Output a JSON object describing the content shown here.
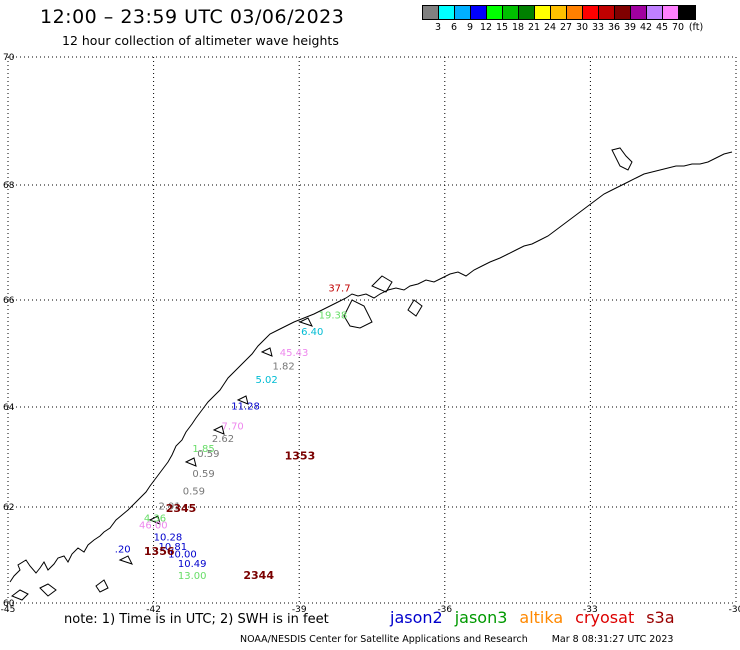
{
  "header": {
    "title": "12:00 – 23:59 UTC 03/06/2023",
    "subtitle": "12 hour collection of altimeter wave heights"
  },
  "colorbar": {
    "colors": [
      "#808080",
      "#00ffff",
      "#00b0ff",
      "#0000ff",
      "#00ff00",
      "#00c000",
      "#008000",
      "#ffff00",
      "#ffc000",
      "#ff8000",
      "#ff0000",
      "#c00000",
      "#800000",
      "#a000a0",
      "#c080ff",
      "#ff80ff",
      "#000000"
    ],
    "labels": [
      "3",
      "6",
      "9",
      "12",
      "15",
      "18",
      "21",
      "24",
      "27",
      "30",
      "33",
      "36",
      "39",
      "42",
      "45",
      "70",
      "(ft)"
    ]
  },
  "chart_data": {
    "type": "scatter",
    "title": "12 hour collection of altimeter wave heights",
    "xlim": [
      -45,
      -30
    ],
    "ylim": [
      60,
      70
    ],
    "x_ticks": [
      "-45",
      "-42",
      "-39",
      "-36",
      "-33",
      "-30"
    ],
    "y_ticks": [
      "70",
      "68",
      "66",
      "64",
      "62",
      "60"
    ],
    "grid": true,
    "points": [
      {
        "lon": -38.4,
        "lat": 66.15,
        "label": "37.7",
        "color": "#c00000"
      },
      {
        "lon": -38.6,
        "lat": 65.65,
        "label": "19.38",
        "color": "#66dd66"
      },
      {
        "lon": -38.96,
        "lat": 65.35,
        "label": "6.40",
        "color": "#00bcd4"
      },
      {
        "lon": -39.4,
        "lat": 64.95,
        "label": "45.43",
        "color": "#ee88ee"
      },
      {
        "lon": -39.55,
        "lat": 64.7,
        "label": "1.82",
        "color": "#777777"
      },
      {
        "lon": -39.9,
        "lat": 64.45,
        "label": "5.02",
        "color": "#00bcd4"
      },
      {
        "lon": -40.4,
        "lat": 63.95,
        "label": "11.28",
        "color": "#0000cc"
      },
      {
        "lon": -40.6,
        "lat": 63.55,
        "label": "7.70",
        "color": "#ee88ee"
      },
      {
        "lon": -40.8,
        "lat": 63.3,
        "label": "2.62",
        "color": "#777777"
      },
      {
        "lon": -41.2,
        "lat": 63.1,
        "label": "1.85",
        "color": "#66dd66"
      },
      {
        "lon": -41.1,
        "lat": 63.0,
        "label": "0.59",
        "color": "#777777"
      },
      {
        "lon": -41.2,
        "lat": 62.6,
        "label": "0.59",
        "color": "#777777"
      },
      {
        "lon": -41.4,
        "lat": 62.25,
        "label": "0.59",
        "color": "#777777"
      },
      {
        "lon": -41.9,
        "lat": 61.95,
        "label": "2.91",
        "color": "#777777"
      },
      {
        "lon": -42.2,
        "lat": 61.7,
        "label": "4.36",
        "color": "#66dd66"
      },
      {
        "lon": -42.3,
        "lat": 61.55,
        "label": "46.00",
        "color": "#ee88ee"
      },
      {
        "lon": -42.0,
        "lat": 61.3,
        "label": "10.28",
        "color": "#0000cc"
      },
      {
        "lon": -41.9,
        "lat": 61.1,
        "label": "10.81",
        "color": "#0000cc"
      },
      {
        "lon": -42.8,
        "lat": 61.05,
        "label": ".20",
        "color": "#0000cc"
      },
      {
        "lon": -41.7,
        "lat": 60.95,
        "label": "10.00",
        "color": "#0000cc"
      },
      {
        "lon": -41.5,
        "lat": 60.75,
        "label": "10.49",
        "color": "#0000cc"
      },
      {
        "lon": -41.5,
        "lat": 60.5,
        "label": "13.00",
        "color": "#66dd66"
      }
    ],
    "pass_times": [
      {
        "lon": -39.3,
        "lat": 62.95,
        "label": "1353"
      },
      {
        "lon": -41.75,
        "lat": 61.9,
        "label": "2345"
      },
      {
        "lon": -42.2,
        "lat": 61.0,
        "label": "1356"
      },
      {
        "lon": -40.15,
        "lat": 60.5,
        "label": "2344"
      }
    ]
  },
  "note": "note:  1) Time is in UTC;  2) SWH is in feet",
  "legend": [
    {
      "name": "jason2",
      "color": "#0000cc"
    },
    {
      "name": "jason3",
      "color": "#009900"
    },
    {
      "name": "altika",
      "color": "#ff8800"
    },
    {
      "name": "cryosat",
      "color": "#dd0000"
    },
    {
      "name": "s3a",
      "color": "#990000"
    }
  ],
  "footer": {
    "credit": "NOAA/NESDIS Center for Satellite Applications and Research",
    "timestamp": "Mar  8 08:31:27 UTC 2023"
  }
}
